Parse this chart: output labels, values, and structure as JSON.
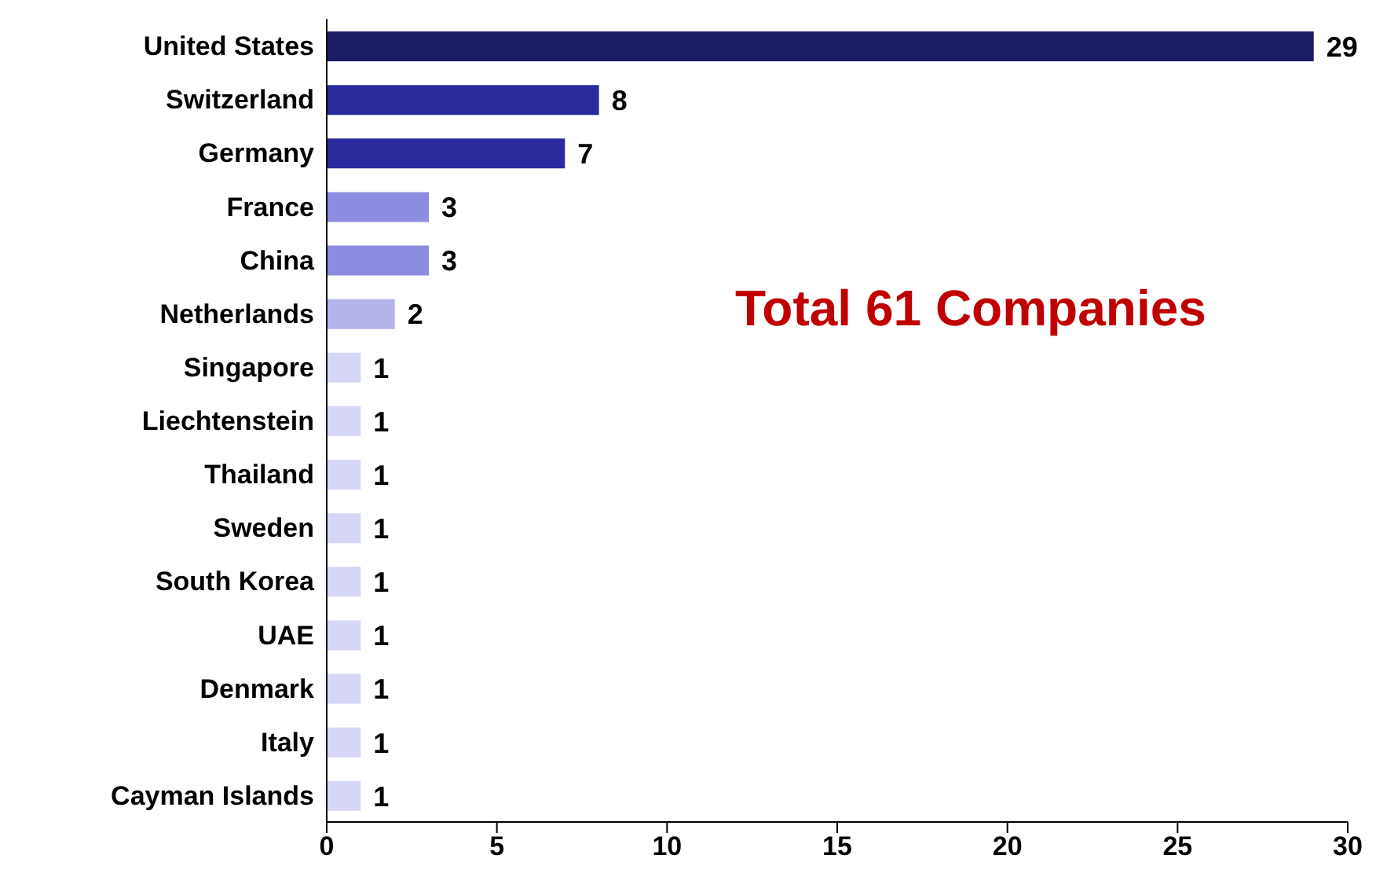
{
  "chart_data": {
    "type": "bar",
    "orientation": "horizontal",
    "categories": [
      "United States",
      "Switzerland",
      "Germany",
      "France",
      "China",
      "Netherlands",
      "Singapore",
      "Liechtenstein",
      "Thailand",
      "Sweden",
      "South Korea",
      "UAE",
      "Denmark",
      "Italy",
      "Cayman Islands"
    ],
    "values": [
      29,
      8,
      7,
      3,
      3,
      2,
      1,
      1,
      1,
      1,
      1,
      1,
      1,
      1,
      1
    ],
    "colors": [
      "#1c1c66",
      "#2a2a9c",
      "#2a2a9c",
      "#8c8ce0",
      "#8c8ce0",
      "#b4b4ec",
      "#d6d6f6",
      "#d6d6f6",
      "#d6d6f6",
      "#d6d6f6",
      "#d6d6f6",
      "#d6d6f6",
      "#d6d6f6",
      "#d6d6f6",
      "#d6d6f6"
    ],
    "xlim": [
      0,
      30
    ],
    "xticks": [
      0,
      5,
      10,
      15,
      20,
      25,
      30
    ],
    "data_labels": true,
    "grid": false,
    "annotations": [
      "Total 61 Companies"
    ]
  }
}
